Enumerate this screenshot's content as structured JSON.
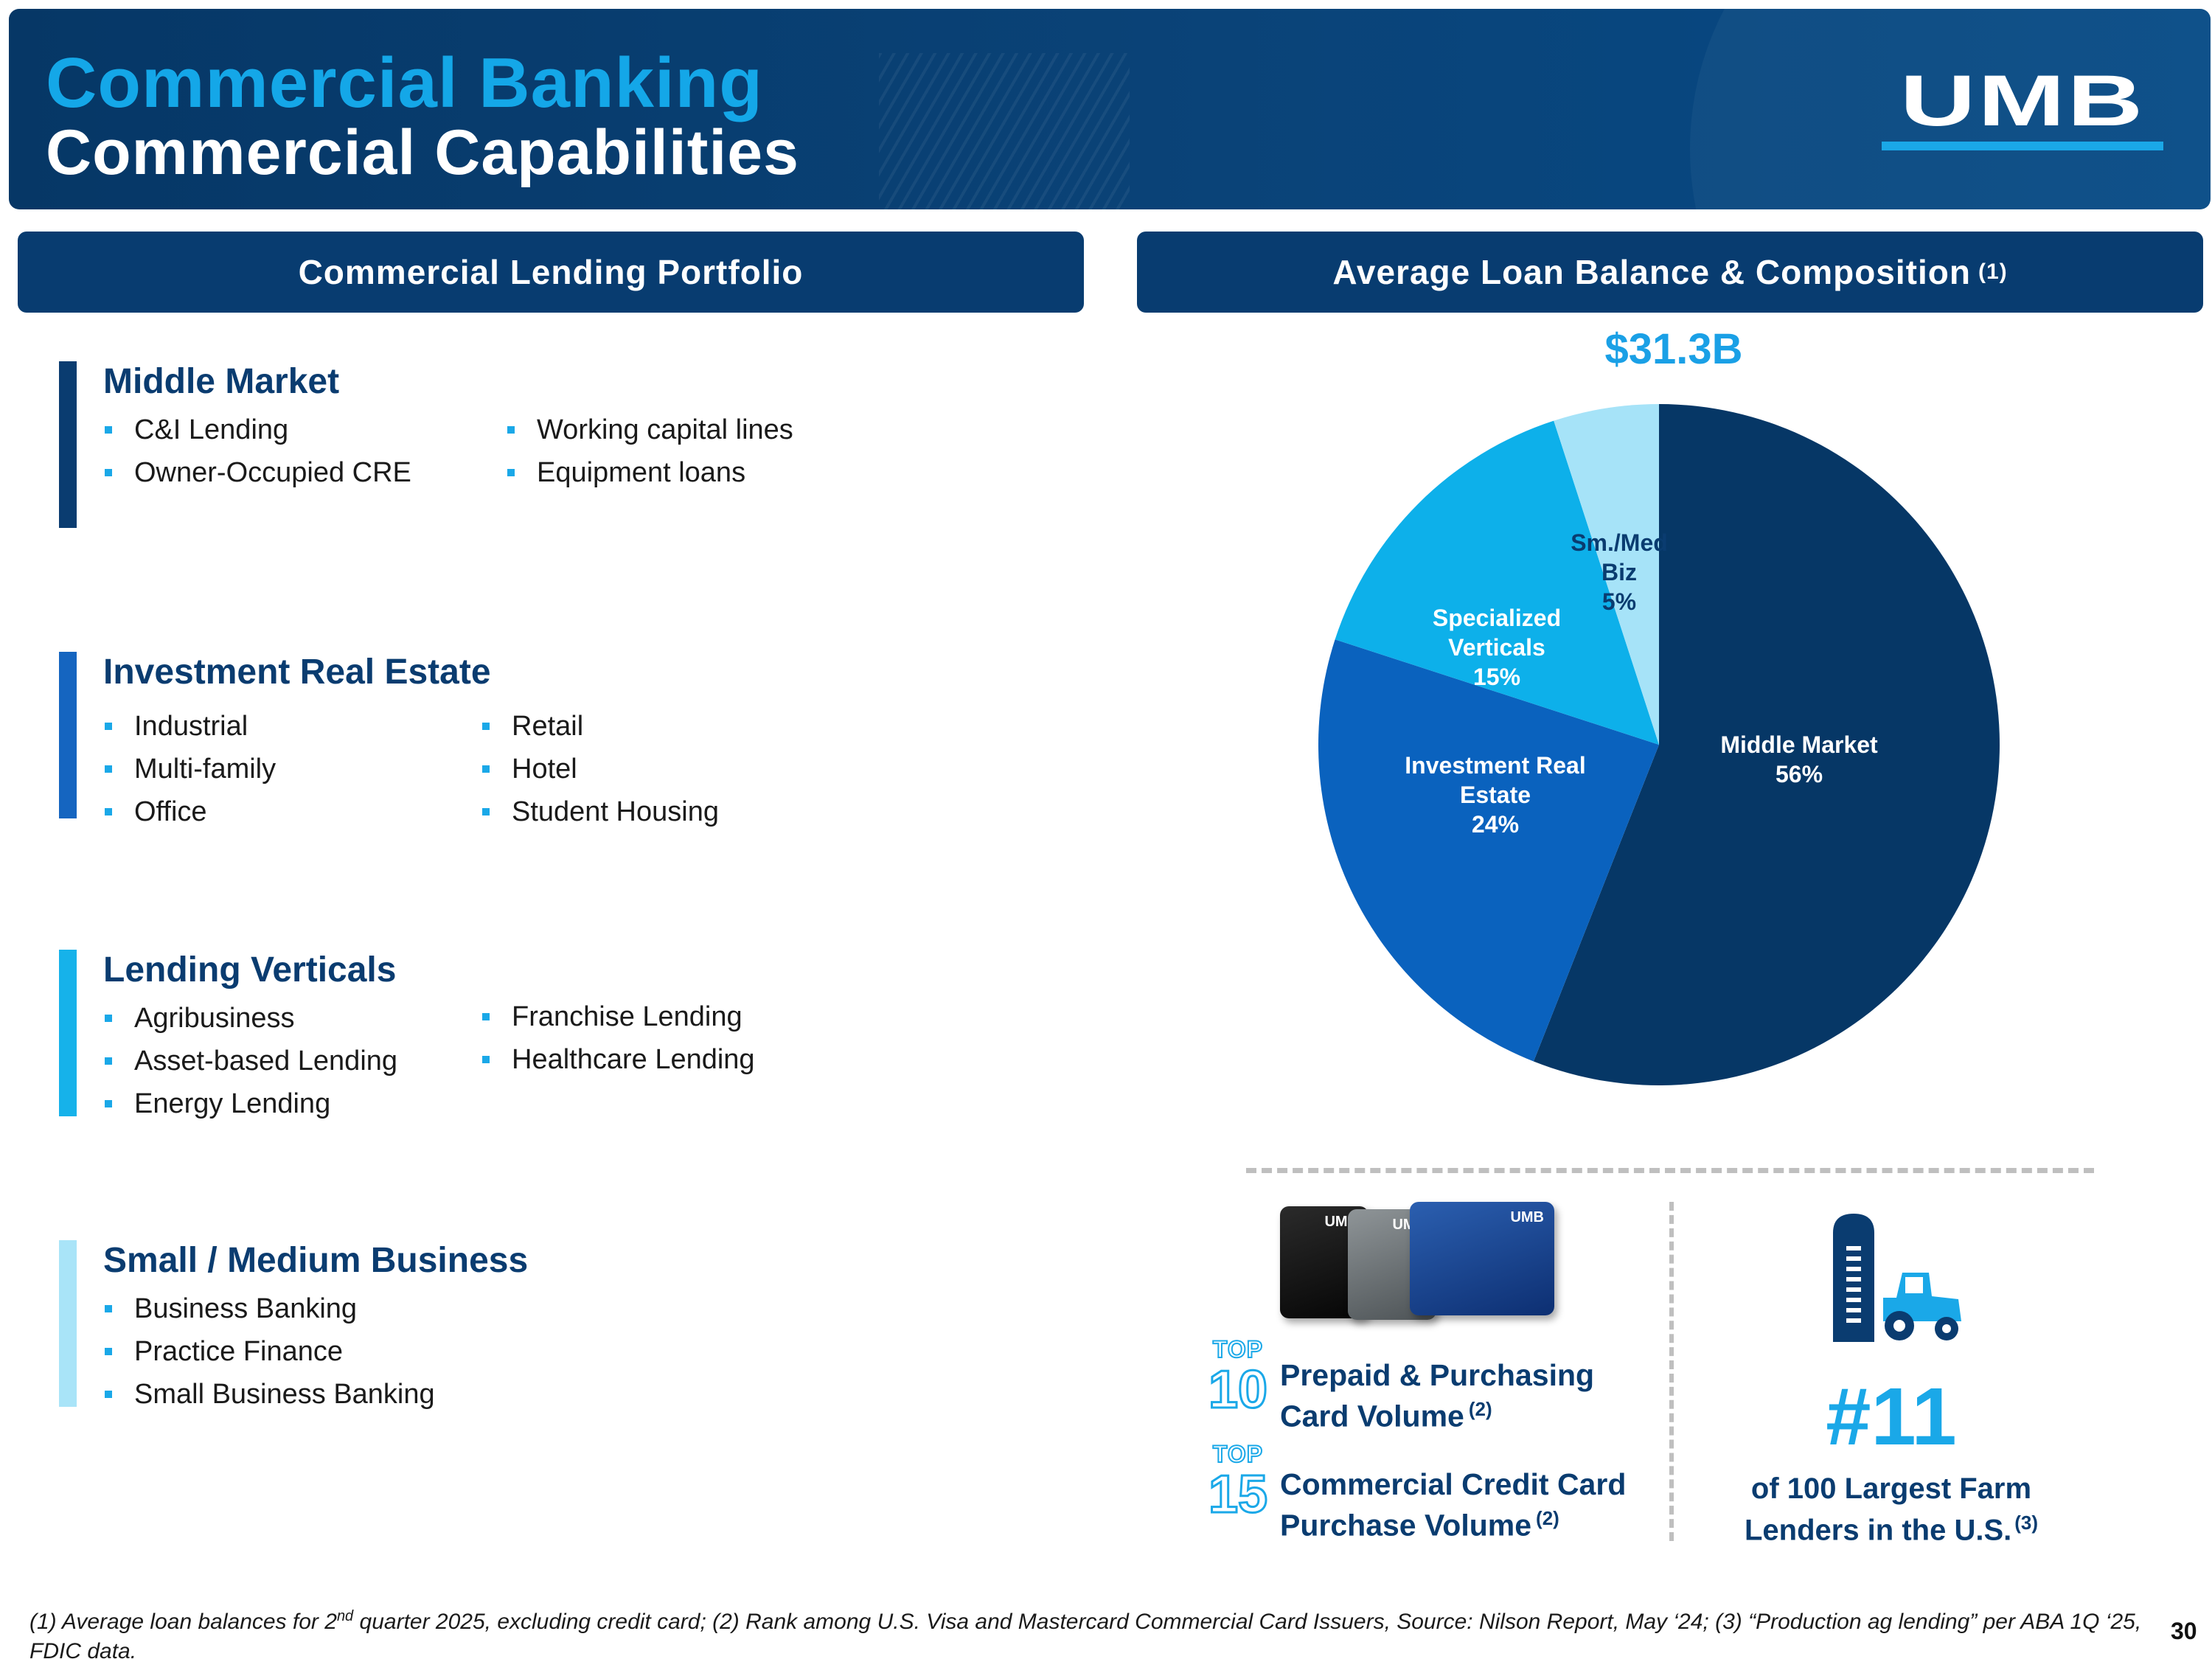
{
  "header": {
    "title_line1": "Commercial Banking",
    "title_line2": "Commercial Capabilities",
    "logo_text": "UMB"
  },
  "left_section": {
    "heading": "Commercial Lending Portfolio",
    "groups": [
      {
        "title": "Middle Market",
        "accent": "#0a3c70",
        "col1": [
          "C&I Lending",
          "Owner-Occupied CRE"
        ],
        "col2": [
          "Working capital lines",
          "Equipment loans"
        ]
      },
      {
        "title": "Investment Real Estate",
        "accent": "#1565c0",
        "col1": [
          "Industrial",
          "Multi-family",
          "Office"
        ],
        "col2": [
          "Retail",
          "Hotel",
          "Student Housing"
        ]
      },
      {
        "title": "Lending Verticals",
        "accent": "#16b2ea",
        "col1": [
          "Agribusiness",
          "Asset-based Lending",
          "Energy Lending"
        ],
        "col2": [
          "Franchise Lending",
          "Healthcare Lending"
        ]
      },
      {
        "title": "Small / Medium Business",
        "accent": "#a9e4f8",
        "col1": [
          "Business Banking",
          "Practice Finance",
          "Small Business Banking"
        ],
        "col2": []
      }
    ]
  },
  "right_section": {
    "heading": "Average Loan Balance & Composition",
    "heading_note": "(1)"
  },
  "chart_data": {
    "type": "pie",
    "total_label": "$31.3B",
    "slices": [
      {
        "label_lines": [
          "Middle Market",
          "56%"
        ],
        "value": 56,
        "color": "#063766",
        "text_color": "#ffffff"
      },
      {
        "label_lines": [
          "Investment Real",
          "Estate",
          "24%"
        ],
        "value": 24,
        "color": "#0a62be",
        "text_color": "#ffffff"
      },
      {
        "label_lines": [
          "Specialized",
          "Verticals",
          "15%"
        ],
        "value": 15,
        "color": "#0db0ea",
        "text_color": "#ffffff"
      },
      {
        "label_lines": [
          "Sm./Med",
          "Biz",
          "5%"
        ],
        "value": 5,
        "color": "#a6e3f8",
        "text_color": "#0a3c70"
      }
    ]
  },
  "stats": {
    "card_brand": "UMB",
    "rank1": {
      "top": "TOP",
      "number": "10",
      "line1": "Prepaid & Purchasing",
      "line2": "Card Volume",
      "note": "(2)"
    },
    "rank2": {
      "top": "TOP",
      "number": "15",
      "line1": "Commercial Credit Card",
      "line2": "Purchase Volume",
      "note": "(2)"
    },
    "farm": {
      "rank": "#11",
      "line1": "of 100 Largest Farm",
      "line2": "Lenders in the U.S.",
      "note": "(3)"
    }
  },
  "footer": {
    "footnote_pre": "(1) Average loan balances for 2",
    "footnote_sup": "nd",
    "footnote_post": " quarter 2025, excluding credit card; (2) Rank among U.S. Visa and Mastercard Commercial Card Issuers, Source: Nilson Report, May ‘24; (3) “Production ag lending” per ABA 1Q ‘25, FDIC data.",
    "page_number": "30"
  }
}
